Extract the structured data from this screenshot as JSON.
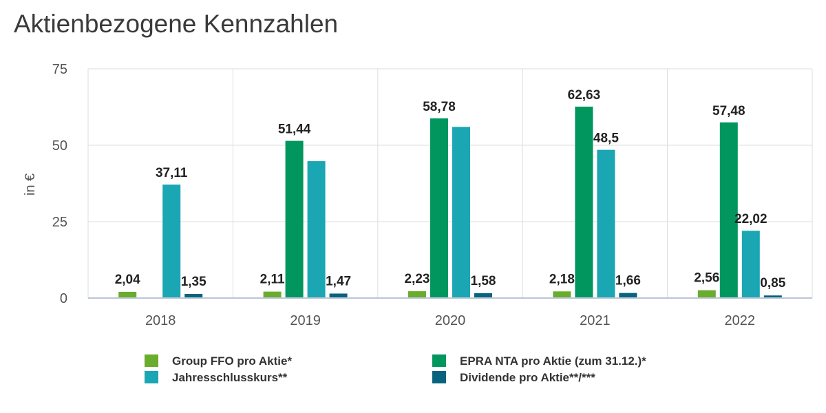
{
  "chart_data": {
    "type": "bar",
    "title": "Aktienbezogene Kennzahlen",
    "xlabel": "",
    "ylabel": "in €",
    "ylim": [
      0,
      75
    ],
    "yticks": [
      0,
      25,
      50,
      75
    ],
    "grid": true,
    "categories": [
      "2018",
      "2019",
      "2020",
      "2021",
      "2022"
    ],
    "series": [
      {
        "name": "Group FFO pro Aktie*",
        "color": "#6aac2e",
        "values": [
          2.04,
          2.11,
          2.23,
          2.18,
          2.56
        ],
        "labels": [
          "2,04",
          "2,11",
          "2,23",
          "2,18",
          "2,56"
        ]
      },
      {
        "name": "EPRA NTA pro Aktie (zum 31.12.)*",
        "color": "#00965e",
        "values": [
          null,
          51.44,
          58.78,
          62.63,
          57.48
        ],
        "labels": [
          "",
          "51,44",
          "58,78",
          "62,63",
          "57,48"
        ]
      },
      {
        "name": "Jahresschlusskurs**",
        "color": "#1aa6b3",
        "values": [
          37.11,
          44.8,
          56.0,
          48.5,
          22.02
        ],
        "labels": [
          "37,11",
          "",
          "",
          "48,5",
          "22,02"
        ]
      },
      {
        "name": "Dividende pro Aktie**/***",
        "color": "#08637f",
        "values": [
          1.35,
          1.47,
          1.58,
          1.66,
          0.85
        ],
        "labels": [
          "1,35",
          "1,47",
          "1,58",
          "1,66",
          "0,85"
        ]
      }
    ],
    "legend_position": "bottom"
  }
}
